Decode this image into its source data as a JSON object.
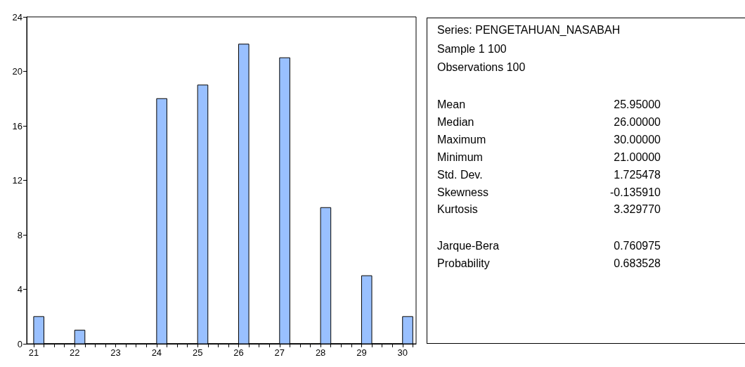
{
  "chart_data": [
    {
      "type": "histogram",
      "color": "#99c0ff",
      "bins": [
        21,
        21.25,
        21.5,
        21.75,
        22,
        22.25,
        22.5,
        22.75,
        23,
        23.25,
        23.5,
        23.75,
        24,
        24.25,
        24.5,
        24.75,
        25,
        25.25,
        25.5,
        25.75,
        26,
        26.25,
        26.5,
        26.75,
        27,
        27.25,
        27.5,
        27.75,
        28,
        28.25,
        28.5,
        28.75,
        29,
        29.25,
        29.5,
        29.75,
        30,
        30.25
      ],
      "values": [
        2,
        0,
        0,
        0,
        1,
        0,
        0,
        0,
        0,
        0,
        0,
        0,
        18,
        0,
        0,
        0,
        19,
        0,
        0,
        0,
        22,
        0,
        0,
        0,
        21,
        0,
        0,
        0,
        10,
        0,
        0,
        0,
        5,
        0,
        0,
        0,
        2
      ],
      "xlim": [
        20.83,
        30.33
      ],
      "xticks": [
        21,
        {
          "value": 21.25,
          "label": null
        },
        {
          "value": 21.5,
          "label": null
        },
        {
          "value": 21.75,
          "label": null
        },
        22,
        {
          "value": 22.25,
          "label": null
        },
        {
          "value": 22.5,
          "label": null
        },
        {
          "value": 22.75,
          "label": null
        },
        23,
        {
          "value": 23.25,
          "label": null
        },
        {
          "value": 23.5,
          "label": null
        },
        {
          "value": 23.75,
          "label": null
        },
        24,
        {
          "value": 24.25,
          "label": null
        },
        {
          "value": 24.5,
          "label": null
        },
        {
          "value": 24.75,
          "label": null
        },
        25,
        {
          "value": 25.25,
          "label": null
        },
        {
          "value": 25.5,
          "label": null
        },
        {
          "value": 25.75,
          "label": null
        },
        26,
        {
          "value": 26.25,
          "label": null
        },
        {
          "value": 26.5,
          "label": null
        },
        {
          "value": 26.75,
          "label": null
        },
        27,
        {
          "value": 27.25,
          "label": null
        },
        {
          "value": 27.5,
          "label": null
        },
        {
          "value": 27.75,
          "label": null
        },
        28,
        {
          "value": 28.25,
          "label": null
        },
        {
          "value": 28.5,
          "label": null
        },
        {
          "value": 28.75,
          "label": null
        },
        29,
        {
          "value": 29.25,
          "label": null
        },
        {
          "value": 29.5,
          "label": null
        },
        {
          "value": 29.75,
          "label": null
        },
        30,
        {
          "value": 30.25,
          "label": null
        }
      ],
      "ylim": [
        0,
        24
      ],
      "yticks": [
        0,
        4,
        8,
        12,
        16,
        20,
        24
      ],
      "grid": false
    },
    {
      "type": "other",
      "title": "Series: PENGETAHUAN_NASABAH",
      "annotations": [
        "Sample 1 100",
        "Observations 100"
      ],
      "categories": [
        "Mean",
        "Median",
        "Maximum",
        "Minimum",
        "Std. Dev.",
        "Skewness",
        "Kurtosis",
        null,
        "Jarque-Bera",
        "Probability"
      ],
      "values": [
        25.95,
        26,
        30,
        21,
        1.725478,
        -0.13591,
        3.32977,
        null,
        0.760975,
        0.683528
      ],
      "value_labels": [
        "25.95000",
        "26.00000",
        "30.00000",
        "21.00000",
        "1.725478",
        "-0.135910",
        "3.329770",
        null,
        "0.760975",
        "0.683528"
      ]
    }
  ]
}
